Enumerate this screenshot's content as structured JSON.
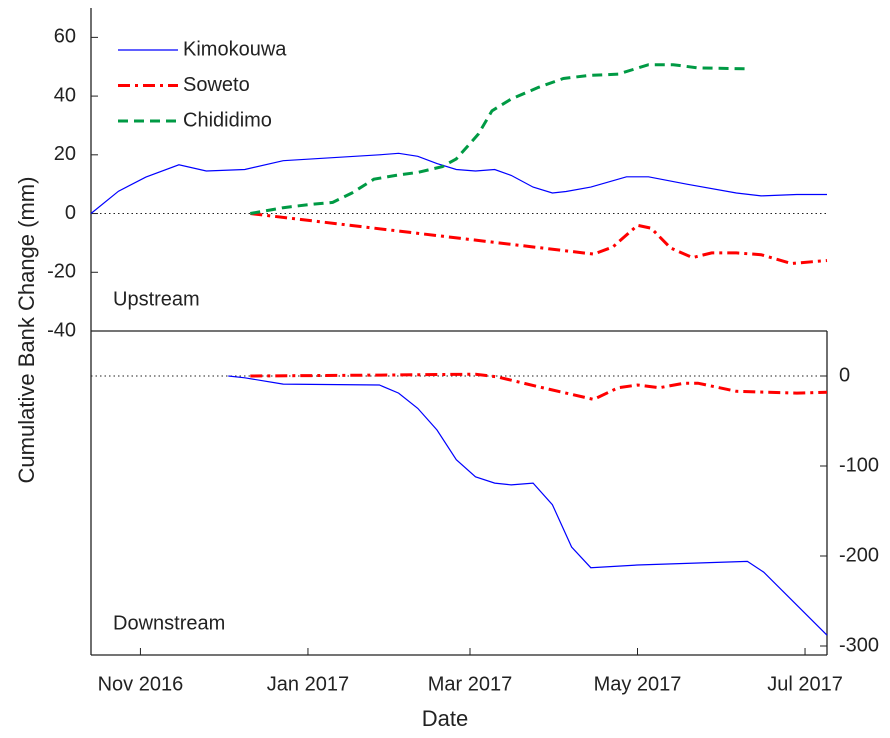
{
  "chart_data": [
    {
      "type": "line",
      "ylabel": "Cumulative Bank Change (mm)",
      "annotation": "Upstream",
      "xlim": [
        "2016-10-14",
        "2017-07-09"
      ],
      "ylim": [
        -40,
        70
      ],
      "yticks": [
        -40,
        -20,
        0,
        20,
        40,
        60
      ],
      "zero_line": true,
      "legend": "upper-left",
      "series": [
        {
          "name": "Kimokouwa",
          "color": "#0000ff",
          "dash": "solid",
          "x": [
            "2016-10-14",
            "2016-10-24",
            "2016-11-03",
            "2016-11-15",
            "2016-11-25",
            "2016-12-09",
            "2016-12-23",
            "2017-01-27",
            "2017-02-03",
            "2017-02-10",
            "2017-02-17",
            "2017-02-24",
            "2017-03-03",
            "2017-03-10",
            "2017-03-16",
            "2017-03-24",
            "2017-03-31",
            "2017-04-05",
            "2017-04-14",
            "2017-04-27",
            "2017-05-05",
            "2017-05-19",
            "2017-06-06",
            "2017-06-15",
            "2017-06-28",
            "2017-07-09"
          ],
          "values": [
            0,
            7.6,
            12.4,
            16.6,
            14.5,
            15,
            18,
            20,
            20.5,
            19.5,
            17,
            15,
            14.5,
            15,
            13,
            9,
            7,
            7.5,
            9,
            12.5,
            12.5,
            10,
            7,
            6,
            6.5,
            6.5
          ]
        },
        {
          "name": "Soweto",
          "color": "#ff0000",
          "dash": "dashdot",
          "x": [
            "2016-12-11",
            "2017-04-15",
            "2017-04-22",
            "2017-05-01",
            "2017-05-06",
            "2017-05-13",
            "2017-05-21",
            "2017-05-28",
            "2017-06-06",
            "2017-06-15",
            "2017-06-26",
            "2017-07-09"
          ],
          "values": [
            0,
            -13.8,
            -11.4,
            -4,
            -5,
            -11.7,
            -15,
            -13.4,
            -13.4,
            -14,
            -17,
            -16
          ]
        },
        {
          "name": "Chididimo",
          "color": "#009a44",
          "dash": "dashed",
          "x": [
            "2016-12-11",
            "2016-12-23",
            "2017-01-01",
            "2017-01-10",
            "2017-01-17",
            "2017-01-25",
            "2017-02-02",
            "2017-02-10",
            "2017-02-19",
            "2017-02-24",
            "2017-03-04",
            "2017-03-09",
            "2017-03-16",
            "2017-03-26",
            "2017-04-04",
            "2017-04-13",
            "2017-04-24",
            "2017-05-05",
            "2017-05-14",
            "2017-05-23",
            "2017-06-10"
          ],
          "values": [
            0,
            2,
            3,
            3.8,
            7,
            11.7,
            13,
            14,
            16,
            18.6,
            27,
            35,
            39,
            43,
            46,
            47,
            47.5,
            50.7,
            50.7,
            49.6,
            49.3
          ]
        }
      ]
    },
    {
      "type": "line",
      "annotation": "Downstream",
      "xlabel": "Date",
      "xlim": [
        "2016-10-14",
        "2017-07-09"
      ],
      "xticks": [
        {
          "value": "2016-11-01",
          "label": "Nov 2016"
        },
        {
          "value": "2017-01-01",
          "label": "Jan 2017"
        },
        {
          "value": "2017-03-01",
          "label": "Mar 2017"
        },
        {
          "value": "2017-05-01",
          "label": "May 2017"
        },
        {
          "value": "2017-07-01",
          "label": "Jul 2017"
        }
      ],
      "y2lim": [
        -310,
        50
      ],
      "y2ticks": [
        -300,
        -200,
        -100,
        0
      ],
      "zero_line": true,
      "series": [
        {
          "color": "#0000ff",
          "dash": "solid",
          "axis": "y2",
          "x": [
            "2016-12-03",
            "2016-12-09",
            "2016-12-23",
            "2017-01-27",
            "2017-02-03",
            "2017-02-10",
            "2017-02-17",
            "2017-02-24",
            "2017-03-03",
            "2017-03-10",
            "2017-03-16",
            "2017-03-24",
            "2017-03-31",
            "2017-04-07",
            "2017-04-14",
            "2017-05-01",
            "2017-06-10",
            "2017-06-16",
            "2017-07-09"
          ],
          "values": [
            0,
            -2,
            -9,
            -10,
            -19,
            -36,
            -60,
            -93,
            -112,
            -119,
            -121,
            -119,
            -143,
            -190,
            -213,
            -210,
            -206,
            -218,
            -288
          ]
        },
        {
          "color": "#ff0000",
          "dash": "dashdot",
          "axis": "y2",
          "x": [
            "2016-12-11",
            "2017-01-27",
            "2017-03-03",
            "2017-03-11",
            "2017-03-26",
            "2017-04-15",
            "2017-04-24",
            "2017-05-01",
            "2017-05-09",
            "2017-05-18",
            "2017-05-23",
            "2017-06-06",
            "2017-06-17",
            "2017-06-28",
            "2017-07-09"
          ],
          "values": [
            0,
            1,
            2,
            -1,
            -12,
            -26,
            -13,
            -10,
            -13,
            -8,
            -8,
            -17,
            -18,
            -19,
            -18
          ]
        }
      ]
    }
  ]
}
